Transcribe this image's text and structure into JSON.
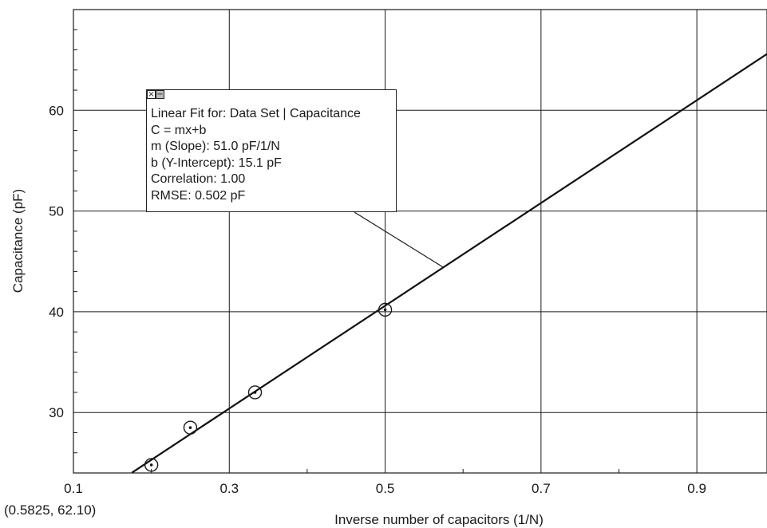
{
  "chart_data": {
    "type": "scatter",
    "xlabel": "Inverse number of capacitors (1/N)",
    "ylabel": "Capacitance (pF)",
    "xlim": [
      0.1,
      0.99
    ],
    "ylim": [
      24,
      70
    ],
    "x_ticks": [
      0.1,
      0.3,
      0.5,
      0.7,
      0.9
    ],
    "x_tick_labels": [
      "0.1",
      "0.3",
      "0.5",
      "0.7",
      "0.9"
    ],
    "y_ticks": [
      30,
      40,
      50,
      60
    ],
    "y_tick_labels": [
      "30",
      "40",
      "50",
      "60"
    ],
    "grid": true,
    "points": [
      {
        "x": 0.2,
        "y": 24.8
      },
      {
        "x": 0.25,
        "y": 28.5
      },
      {
        "x": 0.333,
        "y": 32.0
      },
      {
        "x": 0.5,
        "y": 40.2
      }
    ],
    "fit": {
      "slope": 51.0,
      "intercept": 15.1,
      "x_start": 0.175,
      "x_end": 0.99
    },
    "annotation_anchor": {
      "x": 0.575,
      "y": 44.4
    },
    "cursor_readout": "(0.5825, 62.10)"
  },
  "fit_box": {
    "close_icon": "close-icon",
    "minimize_icon": "minimize-icon",
    "lines": [
      "Linear Fit for: Data Set | Capacitance",
      "C = mx+b",
      "m (Slope): 51.0 pF/1/N",
      "b (Y-Intercept): 15.1 pF",
      "Correlation: 1.00",
      "RMSE: 0.502 pF"
    ]
  }
}
